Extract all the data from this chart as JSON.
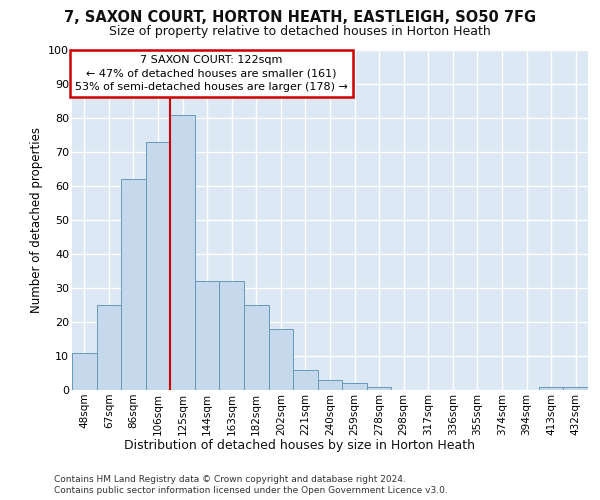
{
  "title1": "7, SAXON COURT, HORTON HEATH, EASTLEIGH, SO50 7FG",
  "title2": "Size of property relative to detached houses in Horton Heath",
  "xlabel": "Distribution of detached houses by size in Horton Heath",
  "ylabel": "Number of detached properties",
  "categories": [
    "48sqm",
    "67sqm",
    "86sqm",
    "106sqm",
    "125sqm",
    "144sqm",
    "163sqm",
    "182sqm",
    "202sqm",
    "221sqm",
    "240sqm",
    "259sqm",
    "278sqm",
    "298sqm",
    "317sqm",
    "336sqm",
    "355sqm",
    "374sqm",
    "394sqm",
    "413sqm",
    "432sqm"
  ],
  "values": [
    11,
    25,
    62,
    73,
    81,
    32,
    32,
    25,
    18,
    6,
    3,
    2,
    1,
    0,
    0,
    0,
    0,
    0,
    0,
    1,
    1
  ],
  "bar_color": "#c5d8ec",
  "bar_edge_color": "#6699bb",
  "background_color": "#dce8f3",
  "property_line_color": "#cc0000",
  "property_line_index": 4,
  "annotation_line1": "7 SAXON COURT: 122sqm",
  "annotation_line2": "← 47% of detached houses are smaller (161)",
  "annotation_line3": "53% of semi-detached houses are larger (178) →",
  "annotation_box_edgecolor": "#cc0000",
  "ylim": [
    0,
    100
  ],
  "yticks": [
    0,
    10,
    20,
    30,
    40,
    50,
    60,
    70,
    80,
    90,
    100
  ],
  "footnote1": "Contains HM Land Registry data © Crown copyright and database right 2024.",
  "footnote2": "Contains public sector information licensed under the Open Government Licence v3.0."
}
